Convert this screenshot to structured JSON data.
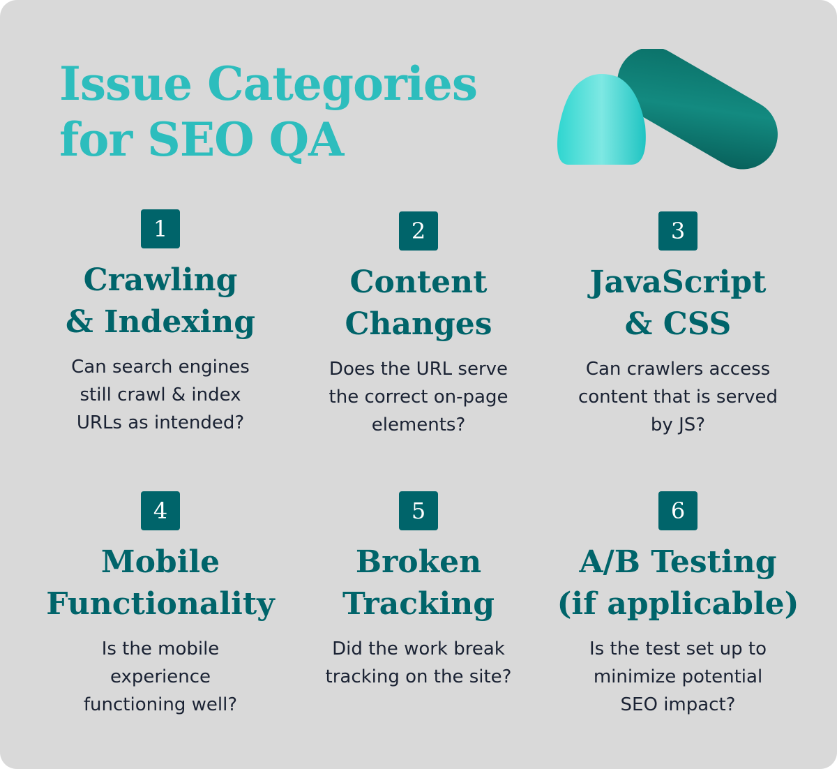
{
  "title_lines": [
    "Issue Categories",
    "for SEO QA"
  ],
  "colors": {
    "title": "#2dbdbd",
    "accent": "#00646a",
    "text": "#1a2233",
    "background": "#d9d9d9"
  },
  "cards": [
    {
      "number": "1",
      "heading_lines": [
        "Crawling",
        "& Indexing"
      ],
      "description": "Can search engines still crawl & index URLs as intended?"
    },
    {
      "number": "2",
      "heading_lines": [
        "Content",
        "Changes"
      ],
      "description": "Does the URL serve the correct on-page elements?"
    },
    {
      "number": "3",
      "heading_lines": [
        "JavaScript",
        "& CSS"
      ],
      "description": "Can crawlers access content that is served by JS?"
    },
    {
      "number": "4",
      "heading_lines": [
        "Mobile",
        "Functionality"
      ],
      "description": "Is the mobile experience functioning well?"
    },
    {
      "number": "5",
      "heading_lines": [
        "Broken",
        "Tracking"
      ],
      "description": "Did the work break tracking on the site?"
    },
    {
      "number": "6",
      "heading_lines": [
        "A/B Testing",
        "(if applicable)"
      ],
      "description": "Is the test set up to minimize potential SEO impact?"
    }
  ]
}
